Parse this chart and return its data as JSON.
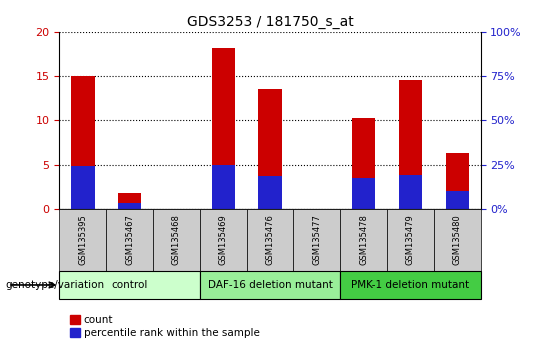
{
  "title": "GDS3253 / 181750_s_at",
  "samples": [
    "GSM135395",
    "GSM135467",
    "GSM135468",
    "GSM135469",
    "GSM135476",
    "GSM135477",
    "GSM135478",
    "GSM135479",
    "GSM135480"
  ],
  "count_values": [
    15.0,
    1.8,
    0.0,
    18.2,
    13.5,
    0.0,
    10.3,
    14.6,
    6.3
  ],
  "percentile_values": [
    4.8,
    0.7,
    0.0,
    5.0,
    3.7,
    0.0,
    3.5,
    3.8,
    2.0
  ],
  "bar_width": 0.5,
  "count_color": "#cc0000",
  "percentile_color": "#2222cc",
  "ylim_left": [
    0,
    20
  ],
  "ylim_right": [
    0,
    100
  ],
  "yticks_left": [
    0,
    5,
    10,
    15,
    20
  ],
  "yticks_right": [
    0,
    25,
    50,
    75,
    100
  ],
  "groups": [
    {
      "label": "control",
      "indices": [
        0,
        1,
        2
      ],
      "color": "#ccffcc"
    },
    {
      "label": "DAF-16 deletion mutant",
      "indices": [
        3,
        4,
        5
      ],
      "color": "#99ee99"
    },
    {
      "label": "PMK-1 deletion mutant",
      "indices": [
        6,
        7,
        8
      ],
      "color": "#44cc44"
    }
  ],
  "group_label": "genotype/variation",
  "legend_count": "count",
  "legend_percentile": "percentile rank within the sample",
  "left_tick_color": "#cc0000",
  "right_tick_color": "#2222cc",
  "sample_box_color": "#cccccc",
  "grid_color": "#000000",
  "title_fontsize": 10,
  "tick_fontsize": 8,
  "label_fontsize": 7.5,
  "legend_fontsize": 7.5
}
